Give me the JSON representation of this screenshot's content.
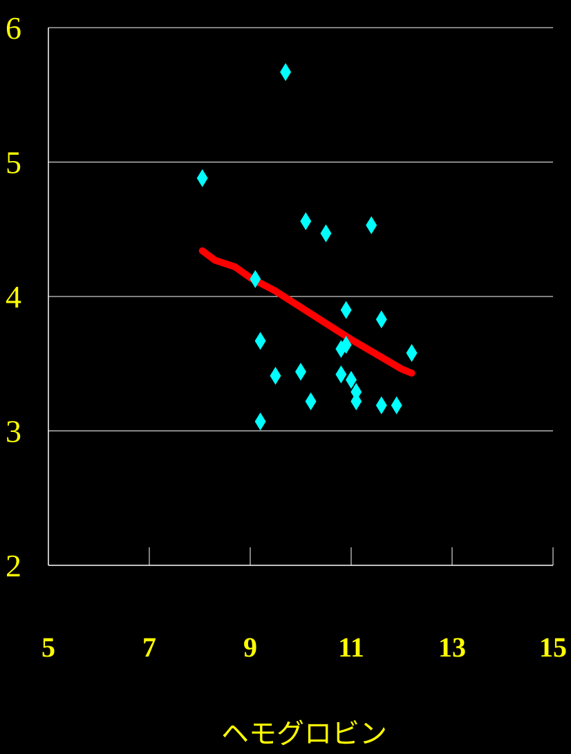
{
  "chart_data": {
    "type": "scatter",
    "title": "",
    "xlabel": "ヘモグロビン",
    "ylabel": "",
    "xlim": [
      5,
      15
    ],
    "ylim": [
      2,
      6
    ],
    "x_ticks": [
      "5",
      "7",
      "9",
      "11",
      "13",
      "15"
    ],
    "y_ticks": [
      "2",
      "3",
      "4",
      "5",
      "6"
    ],
    "grid": "horizontal",
    "colors": {
      "background": "#000000",
      "points": "#00ffff",
      "trend": "#ff0000",
      "text": "#ffff00",
      "axis": "#ffffff"
    },
    "series": [
      {
        "marker": "diamond",
        "points": [
          {
            "x": 8.05,
            "y": 4.88
          },
          {
            "x": 9.1,
            "y": 4.13
          },
          {
            "x": 9.2,
            "y": 3.67
          },
          {
            "x": 9.2,
            "y": 3.07
          },
          {
            "x": 9.5,
            "y": 3.41
          },
          {
            "x": 9.7,
            "y": 5.67
          },
          {
            "x": 10.0,
            "y": 3.44
          },
          {
            "x": 10.1,
            "y": 4.56
          },
          {
            "x": 10.2,
            "y": 3.22
          },
          {
            "x": 10.5,
            "y": 4.47
          },
          {
            "x": 10.8,
            "y": 3.61
          },
          {
            "x": 10.8,
            "y": 3.42
          },
          {
            "x": 10.9,
            "y": 3.64
          },
          {
            "x": 10.9,
            "y": 3.9
          },
          {
            "x": 11.0,
            "y": 3.38
          },
          {
            "x": 11.1,
            "y": 3.29
          },
          {
            "x": 11.1,
            "y": 3.22
          },
          {
            "x": 11.4,
            "y": 4.53
          },
          {
            "x": 11.6,
            "y": 3.83
          },
          {
            "x": 11.6,
            "y": 3.19
          },
          {
            "x": 11.9,
            "y": 3.19
          },
          {
            "x": 12.2,
            "y": 3.58
          }
        ]
      },
      {
        "type": "line",
        "points": [
          {
            "x": 8.05,
            "y": 4.34
          },
          {
            "x": 8.3,
            "y": 4.27
          },
          {
            "x": 8.7,
            "y": 4.22
          },
          {
            "x": 9.0,
            "y": 4.14
          },
          {
            "x": 9.5,
            "y": 4.04
          },
          {
            "x": 10.0,
            "y": 3.92
          },
          {
            "x": 10.5,
            "y": 3.8
          },
          {
            "x": 11.0,
            "y": 3.68
          },
          {
            "x": 11.5,
            "y": 3.57
          },
          {
            "x": 12.0,
            "y": 3.46
          },
          {
            "x": 12.2,
            "y": 3.43
          }
        ]
      }
    ]
  }
}
